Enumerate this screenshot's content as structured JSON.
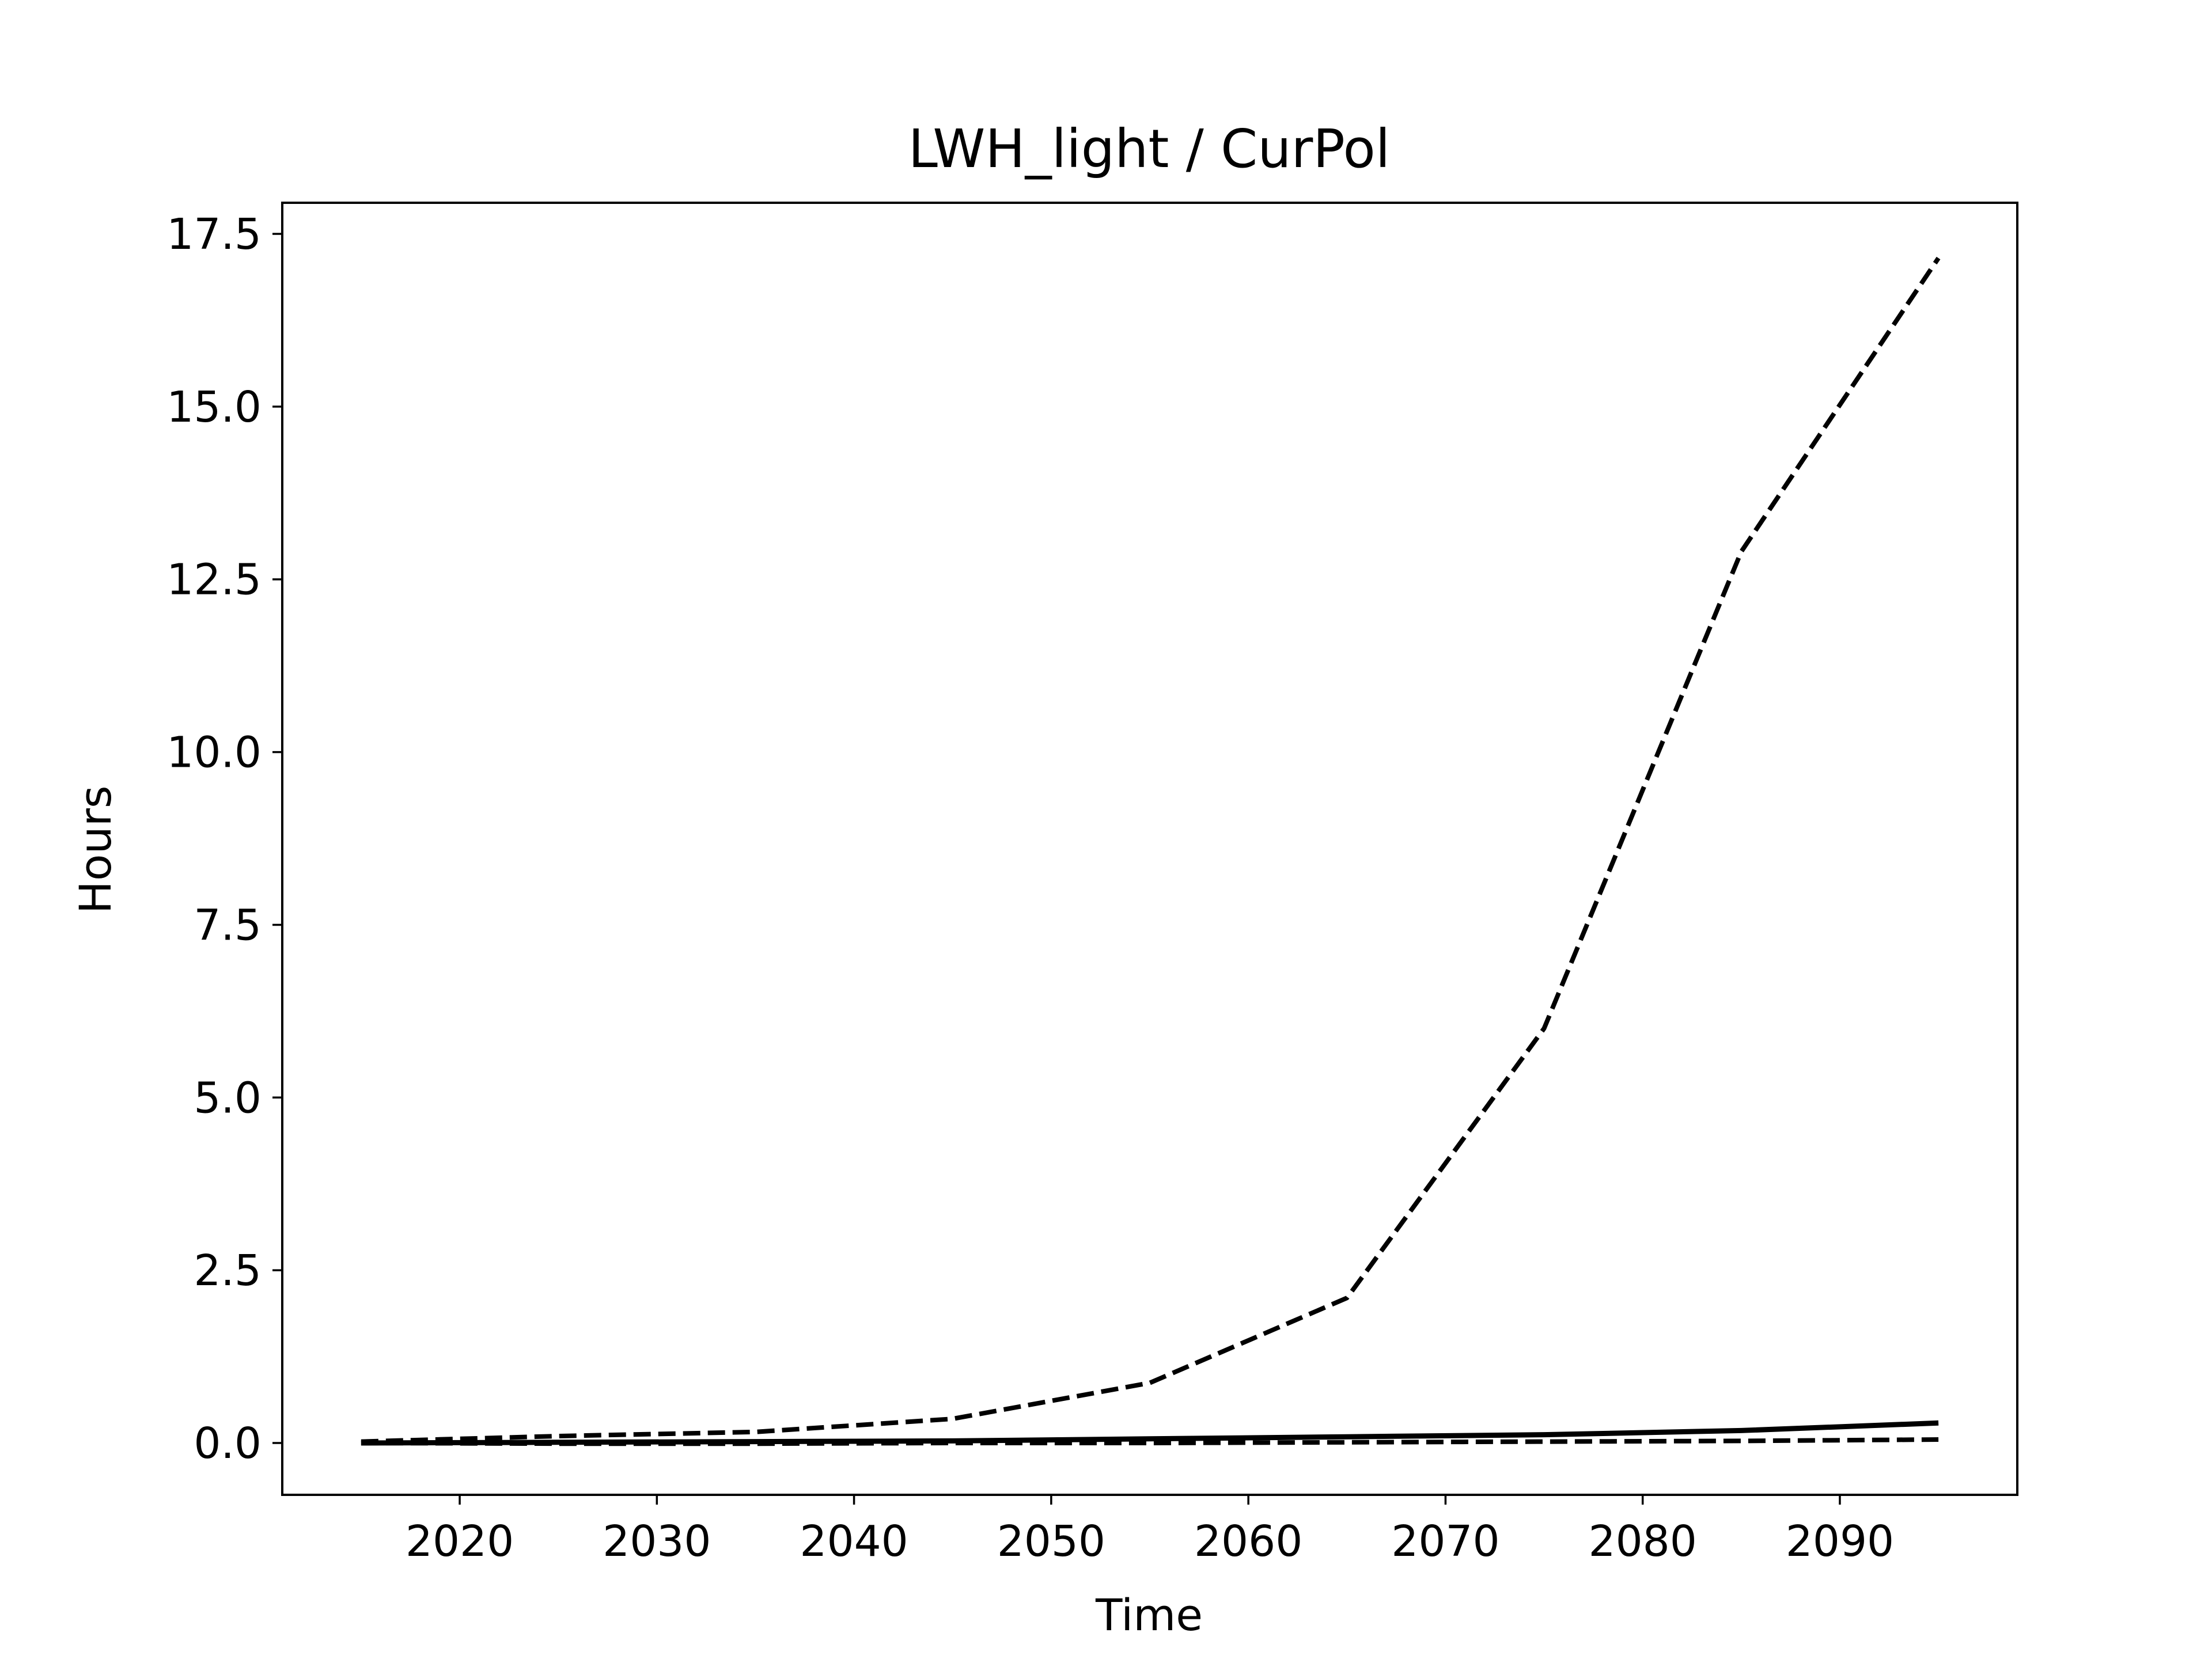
{
  "chart_data": {
    "type": "line",
    "title": "LWH_light / CurPol",
    "xlabel": "Time",
    "ylabel": "Hours",
    "xlim": [
      2011,
      2099
    ],
    "ylim": [
      -0.75,
      17.95
    ],
    "xticks": [
      2020,
      2030,
      2040,
      2050,
      2060,
      2070,
      2080,
      2090
    ],
    "yticks": [
      0,
      2.5,
      5,
      7.5,
      10,
      12.5,
      15,
      17.5
    ],
    "ytick_labels": [
      "0.0",
      "2.5",
      "5.0",
      "7.5",
      "10.0",
      "12.5",
      "15.0",
      "17.5"
    ],
    "xtick_labels": [
      "2020",
      "2030",
      "2040",
      "2050",
      "2060",
      "2070",
      "2080",
      "2090"
    ],
    "grid": false,
    "legend": "none",
    "series": [
      {
        "style": "solid",
        "color": "#000000",
        "x": [
          2015,
          2025,
          2035,
          2045,
          2055,
          2065,
          2075,
          2085,
          2095
        ],
        "y": [
          0.0,
          0.01,
          0.02,
          0.03,
          0.06,
          0.09,
          0.12,
          0.18,
          0.29
        ]
      },
      {
        "style": "dashed",
        "color": "#000000",
        "x": [
          2015,
          2025,
          2035,
          2045,
          2055,
          2065,
          2075,
          2085,
          2095
        ],
        "y": [
          0.02,
          0.1,
          0.16,
          0.35,
          0.87,
          2.1,
          6.0,
          12.9,
          17.15
        ]
      },
      {
        "style": "dashed",
        "color": "#000000",
        "x": [
          2015,
          2025,
          2035,
          2045,
          2055,
          2065,
          2075,
          2085,
          2095
        ],
        "y": [
          0.0,
          -0.01,
          -0.01,
          0.0,
          0.0,
          0.01,
          0.02,
          0.03,
          0.05
        ]
      }
    ]
  }
}
